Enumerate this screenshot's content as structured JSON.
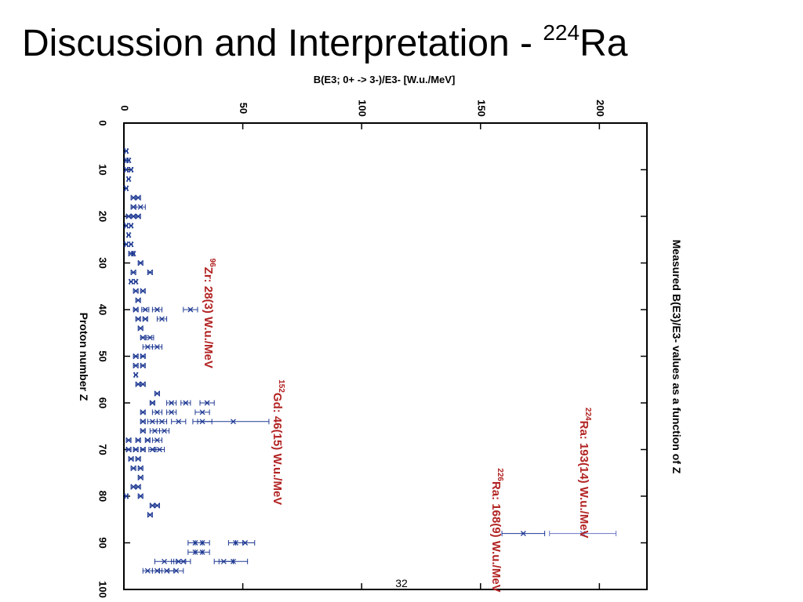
{
  "slide": {
    "title_text": "Discussion and Interpretation - ",
    "title_sup": "224",
    "title_element": "Ra",
    "page_number": "32"
  },
  "chart_data": {
    "type": "scatter",
    "orientation": "rotated-90-clockwise",
    "title": "Measured B(E3)/E3- values as a function of Z",
    "xlabel": "Proton number Z",
    "ylabel": "B(E3; 0+ -> 3-)/E3- [W.u./MeV]",
    "xlim": [
      0,
      100
    ],
    "ylim": [
      0,
      220
    ],
    "x_ticks": [
      0,
      10,
      20,
      30,
      40,
      50,
      60,
      70,
      80,
      90,
      100
    ],
    "y_ticks": [
      0,
      50,
      100,
      150,
      200
    ],
    "grid": false,
    "colors": {
      "points": "#1f3a93",
      "ra224": "#6b74c6",
      "annotations": "#b22222"
    },
    "series": [
      {
        "points": [
          {
            "z": 6,
            "v": 1,
            "err": 0.5
          },
          {
            "z": 8,
            "v": 1,
            "err": 0.5
          },
          {
            "z": 8,
            "v": 2,
            "err": 0.5
          },
          {
            "z": 10,
            "v": 1,
            "err": 0.5
          },
          {
            "z": 10,
            "v": 3,
            "err": 0.5
          },
          {
            "z": 12,
            "v": 2,
            "err": 0.5
          },
          {
            "z": 14,
            "v": 1,
            "err": 0.5
          },
          {
            "z": 16,
            "v": 4,
            "err": 1
          },
          {
            "z": 16,
            "v": 6,
            "err": 1
          },
          {
            "z": 18,
            "v": 4,
            "err": 1
          },
          {
            "z": 18,
            "v": 7,
            "err": 2
          },
          {
            "z": 20,
            "v": 2,
            "err": 1
          },
          {
            "z": 20,
            "v": 4,
            "err": 1
          },
          {
            "z": 20,
            "v": 6,
            "err": 1
          },
          {
            "z": 22,
            "v": 1,
            "err": 0.5
          },
          {
            "z": 22,
            "v": 3,
            "err": 0.5
          },
          {
            "z": 24,
            "v": 2,
            "err": 0.5
          },
          {
            "z": 26,
            "v": 1,
            "err": 0.5
          },
          {
            "z": 26,
            "v": 3,
            "err": 0.5
          },
          {
            "z": 28,
            "v": 3,
            "err": 1
          },
          {
            "z": 28,
            "v": 4,
            "err": 0.5
          },
          {
            "z": 30,
            "v": 7,
            "err": 1
          },
          {
            "z": 32,
            "v": 4,
            "err": 1
          },
          {
            "z": 32,
            "v": 11,
            "err": 1
          },
          {
            "z": 34,
            "v": 3,
            "err": 0.5
          },
          {
            "z": 34,
            "v": 5,
            "err": 0.5
          },
          {
            "z": 36,
            "v": 5,
            "err": 1
          },
          {
            "z": 36,
            "v": 8,
            "err": 1
          },
          {
            "z": 38,
            "v": 6,
            "err": 1
          },
          {
            "z": 40,
            "v": 5,
            "err": 1
          },
          {
            "z": 40,
            "v": 9,
            "err": 1.5
          },
          {
            "z": 40,
            "v": 14,
            "err": 2
          },
          {
            "z": 40,
            "v": 28,
            "err": 3
          },
          {
            "z": 42,
            "v": 6,
            "err": 1
          },
          {
            "z": 42,
            "v": 9,
            "err": 1
          },
          {
            "z": 42,
            "v": 16,
            "err": 2
          },
          {
            "z": 44,
            "v": 7,
            "err": 1
          },
          {
            "z": 46,
            "v": 8,
            "err": 1
          },
          {
            "z": 46,
            "v": 11,
            "err": 1.5
          },
          {
            "z": 48,
            "v": 10,
            "err": 2
          },
          {
            "z": 48,
            "v": 14,
            "err": 2
          },
          {
            "z": 50,
            "v": 5,
            "err": 1
          },
          {
            "z": 50,
            "v": 8,
            "err": 1
          },
          {
            "z": 52,
            "v": 5,
            "err": 1
          },
          {
            "z": 52,
            "v": 8,
            "err": 1
          },
          {
            "z": 54,
            "v": 5,
            "err": 0.5
          },
          {
            "z": 56,
            "v": 6,
            "err": 1
          },
          {
            "z": 56,
            "v": 8,
            "err": 1
          },
          {
            "z": 58,
            "v": 14,
            "err": 1
          },
          {
            "z": 60,
            "v": 12,
            "err": 1
          },
          {
            "z": 60,
            "v": 20,
            "err": 2
          },
          {
            "z": 60,
            "v": 26,
            "err": 2
          },
          {
            "z": 60,
            "v": 35,
            "err": 3
          },
          {
            "z": 62,
            "v": 8,
            "err": 1
          },
          {
            "z": 62,
            "v": 14,
            "err": 2
          },
          {
            "z": 62,
            "v": 20,
            "err": 2
          },
          {
            "z": 62,
            "v": 33,
            "err": 3
          },
          {
            "z": 64,
            "v": 8,
            "err": 1
          },
          {
            "z": 64,
            "v": 12,
            "err": 2
          },
          {
            "z": 64,
            "v": 16,
            "err": 2
          },
          {
            "z": 64,
            "v": 23,
            "err": 3
          },
          {
            "z": 64,
            "v": 33,
            "err": 4
          },
          {
            "z": 64,
            "v": 46,
            "err": 15
          },
          {
            "z": 66,
            "v": 8,
            "err": 1
          },
          {
            "z": 66,
            "v": 13,
            "err": 2
          },
          {
            "z": 66,
            "v": 17,
            "err": 2
          },
          {
            "z": 68,
            "v": 2,
            "err": 1
          },
          {
            "z": 68,
            "v": 6,
            "err": 1
          },
          {
            "z": 68,
            "v": 10,
            "err": 1
          },
          {
            "z": 68,
            "v": 14,
            "err": 2
          },
          {
            "z": 70,
            "v": 2,
            "err": 1
          },
          {
            "z": 70,
            "v": 5,
            "err": 1
          },
          {
            "z": 70,
            "v": 8,
            "err": 1
          },
          {
            "z": 70,
            "v": 12,
            "err": 1.5
          },
          {
            "z": 70,
            "v": 15,
            "err": 2
          },
          {
            "z": 72,
            "v": 3,
            "err": 1
          },
          {
            "z": 72,
            "v": 6,
            "err": 1
          },
          {
            "z": 74,
            "v": 4,
            "err": 1
          },
          {
            "z": 74,
            "v": 7,
            "err": 1
          },
          {
            "z": 76,
            "v": 7,
            "err": 1
          },
          {
            "z": 78,
            "v": 4,
            "err": 1
          },
          {
            "z": 78,
            "v": 6,
            "err": 1
          },
          {
            "z": 80,
            "v": 1,
            "err": 0.5
          },
          {
            "z": 80,
            "v": 7,
            "err": 1
          },
          {
            "z": 82,
            "v": 12,
            "err": 1
          },
          {
            "z": 82,
            "v": 14,
            "err": 1
          },
          {
            "z": 84,
            "v": 11,
            "err": 1
          },
          {
            "z": 90,
            "v": 30,
            "err": 3
          },
          {
            "z": 90,
            "v": 33,
            "err": 3
          },
          {
            "z": 90,
            "v": 47,
            "err": 3
          },
          {
            "z": 90,
            "v": 51,
            "err": 4
          },
          {
            "z": 92,
            "v": 30,
            "err": 3
          },
          {
            "z": 92,
            "v": 33,
            "err": 3
          },
          {
            "z": 94,
            "v": 17,
            "err": 4
          },
          {
            "z": 94,
            "v": 23,
            "err": 3
          },
          {
            "z": 94,
            "v": 25,
            "err": 3
          },
          {
            "z": 94,
            "v": 42,
            "err": 4
          },
          {
            "z": 94,
            "v": 46,
            "err": 6
          },
          {
            "z": 96,
            "v": 10,
            "err": 2
          },
          {
            "z": 96,
            "v": 14,
            "err": 2
          },
          {
            "z": 96,
            "v": 18,
            "err": 3
          },
          {
            "z": 96,
            "v": 22,
            "err": 3
          }
        ]
      },
      {
        "points": [
          {
            "z": 88,
            "v": 168,
            "err": 9
          }
        ]
      },
      {
        "points": [
          {
            "z": 88,
            "v": 193,
            "err": 14
          }
        ]
      }
    ],
    "annotations": [
      {
        "sup": "96",
        "text": "Zr: 28(3) W.u./MeV",
        "z": 29,
        "v": 34
      },
      {
        "sup": "152",
        "text": "Gd: 46(15) W.u./MeV",
        "z": 55,
        "v": 63
      },
      {
        "sup": "224",
        "text": "Ra: 193(14) W.u./MeV",
        "z": 61,
        "v": 192
      },
      {
        "sup": "226",
        "text": "Ra: 168(9) W.u./MeV",
        "z": 74,
        "v": 155
      }
    ]
  }
}
